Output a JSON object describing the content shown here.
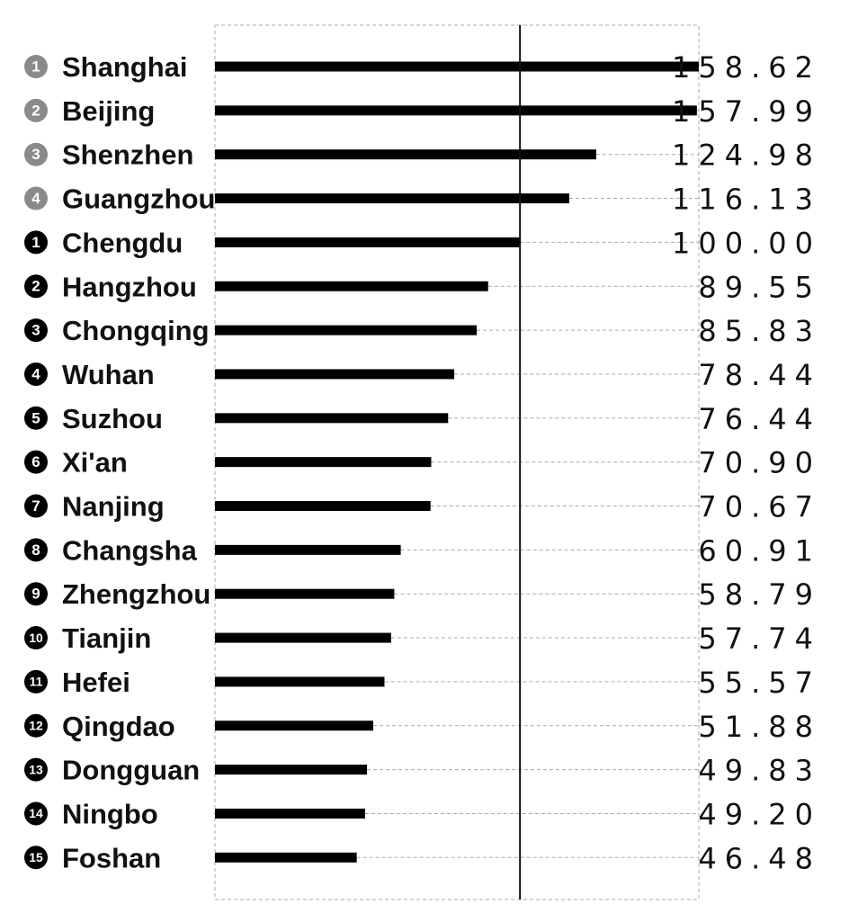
{
  "chart_data": {
    "type": "bar",
    "orientation": "horizontal",
    "reference_value": 100,
    "xlim": [
      0,
      158.62
    ],
    "grid": "dashed",
    "colors": {
      "bar": "#000000",
      "badge_top": "#8a8a8a",
      "badge_rank": "#000000",
      "grid": "#aaaaaa"
    },
    "rows": [
      {
        "badge": "1",
        "badge_style": "gray",
        "city": "Shanghai",
        "value": 158.62,
        "value_text": "158.62"
      },
      {
        "badge": "2",
        "badge_style": "gray",
        "city": "Beijing",
        "value": 157.99,
        "value_text": "157.99"
      },
      {
        "badge": "3",
        "badge_style": "gray",
        "city": "Shenzhen",
        "value": 124.98,
        "value_text": "124.98"
      },
      {
        "badge": "4",
        "badge_style": "gray",
        "city": "Guangzhou",
        "value": 116.13,
        "value_text": "116.13"
      },
      {
        "badge": "1",
        "badge_style": "black",
        "city": "Chengdu",
        "value": 100.0,
        "value_text": "100.00"
      },
      {
        "badge": "2",
        "badge_style": "black",
        "city": "Hangzhou",
        "value": 89.55,
        "value_text": "89.55"
      },
      {
        "badge": "3",
        "badge_style": "black",
        "city": "Chongqing",
        "value": 85.83,
        "value_text": "85.83"
      },
      {
        "badge": "4",
        "badge_style": "black",
        "city": "Wuhan",
        "value": 78.44,
        "value_text": "78.44"
      },
      {
        "badge": "5",
        "badge_style": "black",
        "city": "Suzhou",
        "value": 76.44,
        "value_text": "76.44"
      },
      {
        "badge": "6",
        "badge_style": "black",
        "city": "Xi'an",
        "value": 70.9,
        "value_text": "70.90"
      },
      {
        "badge": "7",
        "badge_style": "black",
        "city": "Nanjing",
        "value": 70.67,
        "value_text": "70.67"
      },
      {
        "badge": "8",
        "badge_style": "black",
        "city": "Changsha",
        "value": 60.91,
        "value_text": "60.91"
      },
      {
        "badge": "9",
        "badge_style": "black",
        "city": "Zhengzhou",
        "value": 58.79,
        "value_text": "58.79"
      },
      {
        "badge": "10",
        "badge_style": "black",
        "city": "Tianjin",
        "value": 57.74,
        "value_text": "57.74"
      },
      {
        "badge": "11",
        "badge_style": "black",
        "city": "Hefei",
        "value": 55.57,
        "value_text": "55.57"
      },
      {
        "badge": "12",
        "badge_style": "black",
        "city": "Qingdao",
        "value": 51.88,
        "value_text": "51.88"
      },
      {
        "badge": "13",
        "badge_style": "black",
        "city": "Dongguan",
        "value": 49.83,
        "value_text": "49.83"
      },
      {
        "badge": "14",
        "badge_style": "black",
        "city": "Ningbo",
        "value": 49.2,
        "value_text": "49.20"
      },
      {
        "badge": "15",
        "badge_style": "black",
        "city": "Foshan",
        "value": 46.48,
        "value_text": "46.48"
      }
    ]
  }
}
